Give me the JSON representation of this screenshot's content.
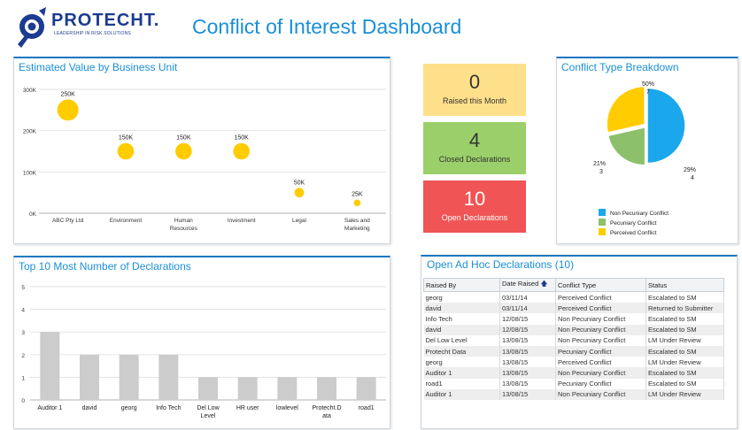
{
  "brand": {
    "name": "PROTECHT.",
    "tagline": "LEADERSHIP IN RISK SOLUTIONS"
  },
  "dashboard_title": "Conflict of Interest Dashboard",
  "estimated_value": {
    "title": "Estimated Value by Business Unit",
    "chart_data": {
      "type": "scatter",
      "categories": [
        "ABC Pty Ltd",
        "Environment",
        "Human Resources",
        "Investment",
        "Legal",
        "Sales and Marketing"
      ],
      "category_lines": [
        [
          "ABC Pty Ltd"
        ],
        [
          "Environment"
        ],
        [
          "Human",
          "Resources"
        ],
        [
          "Investment"
        ],
        [
          "Legal"
        ],
        [
          "Sales and",
          "Marketing"
        ]
      ],
      "values": [
        250,
        150,
        150,
        150,
        50,
        25
      ],
      "data_labels": [
        "250K",
        "150K",
        "150K",
        "150K",
        "50K",
        "25K"
      ],
      "yticks": [
        "0K",
        "100K",
        "200K",
        "300K"
      ],
      "ylim": [
        0,
        300
      ],
      "grid": true,
      "color": "#ffcc00"
    }
  },
  "kpis": [
    {
      "value": "0",
      "label": "Raised this Month",
      "color": "#ffe08a"
    },
    {
      "value": "4",
      "label": "Closed Declarations",
      "color": "#9bcf6a"
    },
    {
      "value": "10",
      "label": "Open Declarations",
      "color": "#f05454"
    }
  ],
  "conflict_breakdown": {
    "title": "Conflict Type Breakdown",
    "chart_data": {
      "type": "pie",
      "labels": [
        "Non Pecuniary Conflict",
        "Pecuniary Conflict",
        "Perceived Conflict"
      ],
      "values": [
        7,
        3,
        4
      ],
      "percent_labels": [
        "50%",
        "21%",
        "29%"
      ],
      "colors": [
        "#1aa7ec",
        "#8cc06b",
        "#ffcc00"
      ],
      "legend": "bottom"
    }
  },
  "top10": {
    "title": "Top 10 Most Number of Declarations",
    "chart_data": {
      "type": "bar",
      "categories": [
        "Auditor 1",
        "david",
        "georg",
        "Info Tech",
        "Del Low Level",
        "HR user",
        "lowlevel",
        "Protecht.Data",
        "road1"
      ],
      "category_lines": [
        [
          "Auditor 1"
        ],
        [
          "david"
        ],
        [
          "georg"
        ],
        [
          "Info Tech"
        ],
        [
          "Del Low",
          "Level"
        ],
        [
          "HR user"
        ],
        [
          "lowlevel"
        ],
        [
          "Protecht.D",
          "ata"
        ],
        [
          "road1"
        ]
      ],
      "values": [
        3,
        2,
        2,
        2,
        1,
        1,
        1,
        1,
        1
      ],
      "yticks": [
        "0",
        "1",
        "2",
        "3",
        "4",
        "5"
      ],
      "ylim": [
        0,
        5
      ],
      "grid": true,
      "color": "#cccccc"
    }
  },
  "open_adhoc": {
    "title": "Open Ad Hoc Declarations (10)",
    "columns": [
      "Raised By",
      "Date Raised",
      "Conflict Type",
      "Status"
    ],
    "sort_icon": "sort-up-arrow-icon",
    "rows": [
      [
        "georg",
        "03/11/14",
        "Perceived Conflict",
        "Escalated to SM"
      ],
      [
        "david",
        "03/11/14",
        "Perceived Conflict",
        "Returned to Submitter"
      ],
      [
        "Info Tech",
        "12/08/15",
        "Non Pecuniary Conflict",
        "Escalated to SM"
      ],
      [
        "david",
        "12/08/15",
        "Non Pecuniary Conflict",
        "Escalated to SM"
      ],
      [
        "Del Low Level",
        "13/08/15",
        "Non Pecuniary Conflict",
        "LM Under Review"
      ],
      [
        "Protecht Data",
        "13/08/15",
        "Pecuniary Conflict",
        "Escalated to SM"
      ],
      [
        "georg",
        "13/08/15",
        "Perceived Conflict",
        "LM Under Review"
      ],
      [
        "Auditor 1",
        "13/08/15",
        "Non Pecuniary Conflict",
        "Escalated to SM"
      ],
      [
        "road1",
        "13/08/15",
        "Pecuniary Conflict",
        "Escalated to SM"
      ],
      [
        "Auditor 1",
        "13/08/15",
        "Non Pecuniary Conflict",
        "LM Under Review"
      ]
    ]
  }
}
